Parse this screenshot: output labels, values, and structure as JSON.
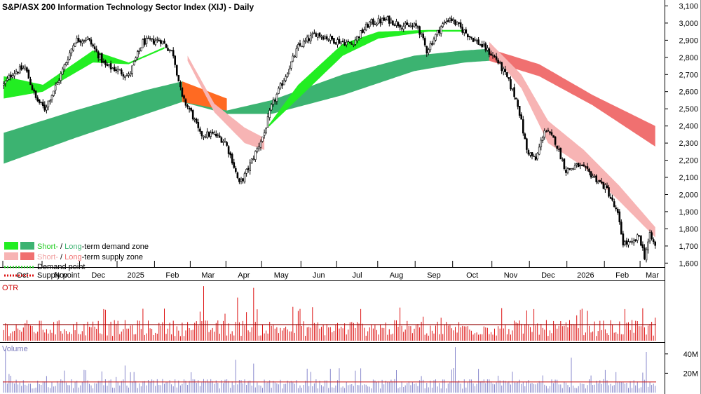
{
  "title": "S&P/ASX 200 Information Technology Sector Index (XIJ) - Daily",
  "legend": {
    "demand_prefix_short": "Short-",
    "demand_slash": " / ",
    "demand_long": "Long",
    "demand_suffix": "-term demand zone",
    "supply_prefix_short": "Short-",
    "supply_slash": " / ",
    "supply_long": "Long",
    "supply_suffix": "-term supply zone",
    "demand_point": "Demand point",
    "supply_point": "Supply point"
  },
  "colors": {
    "short_demand": "#22ee22",
    "long_demand": "#3cb371",
    "short_supply": "#f7b4b4",
    "long_supply": "#f07070",
    "transition_zone": "#ff6a22",
    "price": "#000000",
    "otr": "#dd1111",
    "volume_bar": "#8888cc",
    "volume_avg": "#cc2222",
    "panel_label_otr": "#cc0000",
    "panel_label_volume": "#7777bb"
  },
  "panels": {
    "otr_label": "OTR",
    "volume_label": "Volume"
  },
  "chart_data": [
    {
      "type": "candlestick",
      "title": "S&P/ASX 200 Information Technology Sector Index (XIJ) - Daily",
      "x_tick_labels": [
        "Oct",
        "Nov",
        "Dec",
        "2025",
        "Feb",
        "Mar",
        "Apr",
        "May",
        "Jun",
        "Jul",
        "Aug",
        "Sep",
        "Oct",
        "Nov",
        "Dec",
        "2026",
        "Feb",
        "Mar"
      ],
      "y_tick_labels": [
        "3,100",
        "3,000",
        "2,900",
        "2,800",
        "2,700",
        "2,600",
        "2,500",
        "2,400",
        "2,300",
        "2,200",
        "2,100",
        "2,000",
        "1,900",
        "1,800",
        "1,700",
        "1,600"
      ],
      "ylim": [
        1540,
        3110
      ],
      "y_ticks": [
        3100,
        3000,
        2900,
        2800,
        2700,
        2600,
        2500,
        2400,
        2300,
        2200,
        2100,
        2000,
        1900,
        1800,
        1700,
        1600
      ],
      "month_starts": [
        0,
        22,
        43,
        64,
        85,
        105,
        125,
        145,
        167,
        187,
        210,
        231,
        252,
        274,
        295,
        316,
        337,
        357
      ],
      "n_bars": 366,
      "price_anchors": [
        {
          "bar": 0,
          "close": 2640
        },
        {
          "bar": 5,
          "close": 2710
        },
        {
          "bar": 12,
          "close": 2740
        },
        {
          "bar": 18,
          "close": 2560
        },
        {
          "bar": 23,
          "close": 2500
        },
        {
          "bar": 30,
          "close": 2650
        },
        {
          "bar": 40,
          "close": 2900
        },
        {
          "bar": 47,
          "close": 2910
        },
        {
          "bar": 57,
          "close": 2750
        },
        {
          "bar": 63,
          "close": 2730
        },
        {
          "bar": 70,
          "close": 2690
        },
        {
          "bar": 78,
          "close": 2890
        },
        {
          "bar": 88,
          "close": 2900
        },
        {
          "bar": 95,
          "close": 2820
        },
        {
          "bar": 100,
          "close": 2560
        },
        {
          "bar": 105,
          "close": 2480
        },
        {
          "bar": 110,
          "close": 2350
        },
        {
          "bar": 118,
          "close": 2350
        },
        {
          "bar": 124,
          "close": 2310
        },
        {
          "bar": 128,
          "close": 2200
        },
        {
          "bar": 132,
          "close": 2060
        },
        {
          "bar": 135,
          "close": 2110
        },
        {
          "bar": 140,
          "close": 2220
        },
        {
          "bar": 146,
          "close": 2360
        },
        {
          "bar": 150,
          "close": 2510
        },
        {
          "bar": 156,
          "close": 2650
        },
        {
          "bar": 165,
          "close": 2860
        },
        {
          "bar": 175,
          "close": 2940
        },
        {
          "bar": 185,
          "close": 2900
        },
        {
          "bar": 195,
          "close": 2880
        },
        {
          "bar": 205,
          "close": 3000
        },
        {
          "bar": 215,
          "close": 3020
        },
        {
          "bar": 225,
          "close": 2980
        },
        {
          "bar": 232,
          "close": 2980
        },
        {
          "bar": 237,
          "close": 2840
        },
        {
          "bar": 245,
          "close": 2980
        },
        {
          "bar": 250,
          "close": 3030
        },
        {
          "bar": 257,
          "close": 2960
        },
        {
          "bar": 264,
          "close": 2900
        },
        {
          "bar": 270,
          "close": 2850
        },
        {
          "bar": 276,
          "close": 2790
        },
        {
          "bar": 282,
          "close": 2680
        },
        {
          "bar": 288,
          "close": 2530
        },
        {
          "bar": 293,
          "close": 2260
        },
        {
          "bar": 298,
          "close": 2200
        },
        {
          "bar": 303,
          "close": 2380
        },
        {
          "bar": 309,
          "close": 2310
        },
        {
          "bar": 315,
          "close": 2140
        },
        {
          "bar": 322,
          "close": 2170
        },
        {
          "bar": 330,
          "close": 2110
        },
        {
          "bar": 338,
          "close": 2030
        },
        {
          "bar": 344,
          "close": 1880
        },
        {
          "bar": 347,
          "close": 1720
        },
        {
          "bar": 352,
          "close": 1710
        },
        {
          "bar": 356,
          "close": 1760
        },
        {
          "bar": 359,
          "close": 1640
        },
        {
          "bar": 362,
          "close": 1760
        },
        {
          "bar": 365,
          "close": 1700
        }
      ],
      "zones": {
        "long_term_demand_zone": [
          {
            "bar": 0,
            "upper": 2360,
            "lower": 2180
          },
          {
            "bar": 40,
            "upper": 2490,
            "lower": 2330
          },
          {
            "bar": 80,
            "upper": 2610,
            "lower": 2470
          },
          {
            "bar": 100,
            "upper": 2660,
            "lower": 2540
          },
          {
            "bar": 125,
            "upper": 2490,
            "lower": 2470
          },
          {
            "bar": 150,
            "upper": 2550,
            "lower": 2470
          },
          {
            "bar": 190,
            "upper": 2700,
            "lower": 2580
          },
          {
            "bar": 230,
            "upper": 2810,
            "lower": 2720
          },
          {
            "bar": 258,
            "upper": 2840,
            "lower": 2770
          },
          {
            "bar": 272,
            "upper": 2850,
            "lower": 2780
          }
        ],
        "long_term_supply_zone": [
          {
            "bar": 272,
            "upper": 2850,
            "lower": 2780
          },
          {
            "bar": 300,
            "upper": 2760,
            "lower": 2690
          },
          {
            "bar": 330,
            "upper": 2580,
            "lower": 2520
          },
          {
            "bar": 365,
            "upper": 2400,
            "lower": 2280
          }
        ],
        "long_term_transition_zone": [
          {
            "bar": 100,
            "upper": 2660,
            "lower": 2540
          },
          {
            "bar": 125,
            "upper": 2560,
            "lower": 2490
          }
        ],
        "short_term_demand_zone": [
          {
            "bar": 0,
            "upper": 2690,
            "lower": 2560
          },
          {
            "bar": 22,
            "upper": 2640,
            "lower": 2600
          },
          {
            "bar": 50,
            "upper": 2840,
            "lower": 2770
          },
          {
            "bar": 70,
            "upper": 2770,
            "lower": 2760
          },
          {
            "bar": 90,
            "upper": 2860,
            "lower": 2850
          },
          {
            "bar": 148,
            "upper": 2400,
            "lower": 2390
          },
          {
            "bar": 165,
            "upper": 2640,
            "lower": 2560
          },
          {
            "bar": 190,
            "upper": 2880,
            "lower": 2810
          },
          {
            "bar": 210,
            "upper": 2950,
            "lower": 2910
          },
          {
            "bar": 238,
            "upper": 2960,
            "lower": 2950
          },
          {
            "bar": 258,
            "upper": 2960,
            "lower": 2950
          }
        ],
        "short_term_supply_zone": [
          {
            "bar": 103,
            "upper": 2810,
            "lower": 2780
          },
          {
            "bar": 118,
            "upper": 2530,
            "lower": 2480
          },
          {
            "bar": 135,
            "upper": 2390,
            "lower": 2300
          },
          {
            "bar": 146,
            "upper": 2330,
            "lower": 2260
          },
          {
            "bar": 272,
            "upper": 2890,
            "lower": 2840
          },
          {
            "bar": 290,
            "upper": 2700,
            "lower": 2620
          },
          {
            "bar": 305,
            "upper": 2430,
            "lower": 2300
          },
          {
            "bar": 325,
            "upper": 2260,
            "lower": 2160
          },
          {
            "bar": 345,
            "upper": 2050,
            "lower": 1960
          },
          {
            "bar": 365,
            "upper": 1810,
            "lower": 1750
          }
        ]
      }
    },
    {
      "type": "bar",
      "title": "OTR",
      "n_bars": 366,
      "average_level": 0.28,
      "ylim": [
        0,
        1
      ],
      "spikes": [
        {
          "bar": 56,
          "value": 0.55
        },
        {
          "bar": 112,
          "value": 0.95
        },
        {
          "bar": 131,
          "value": 0.75
        },
        {
          "bar": 140,
          "value": 0.92
        },
        {
          "bar": 297,
          "value": 0.55
        },
        {
          "bar": 348,
          "value": 0.55
        }
      ]
    },
    {
      "type": "bar",
      "title": "Volume",
      "y_tick_labels": [
        "40M",
        "20M"
      ],
      "y_ticks": [
        40,
        20
      ],
      "ylim": [
        0,
        50
      ],
      "average_level": 11,
      "spikes": [
        {
          "bar": 1,
          "value": 45
        },
        {
          "bar": 68,
          "value": 28
        },
        {
          "bar": 130,
          "value": 34
        },
        {
          "bar": 140,
          "value": 30
        },
        {
          "bar": 253,
          "value": 47
        },
        {
          "bar": 318,
          "value": 36
        },
        {
          "bar": 360,
          "value": 42
        }
      ]
    }
  ]
}
